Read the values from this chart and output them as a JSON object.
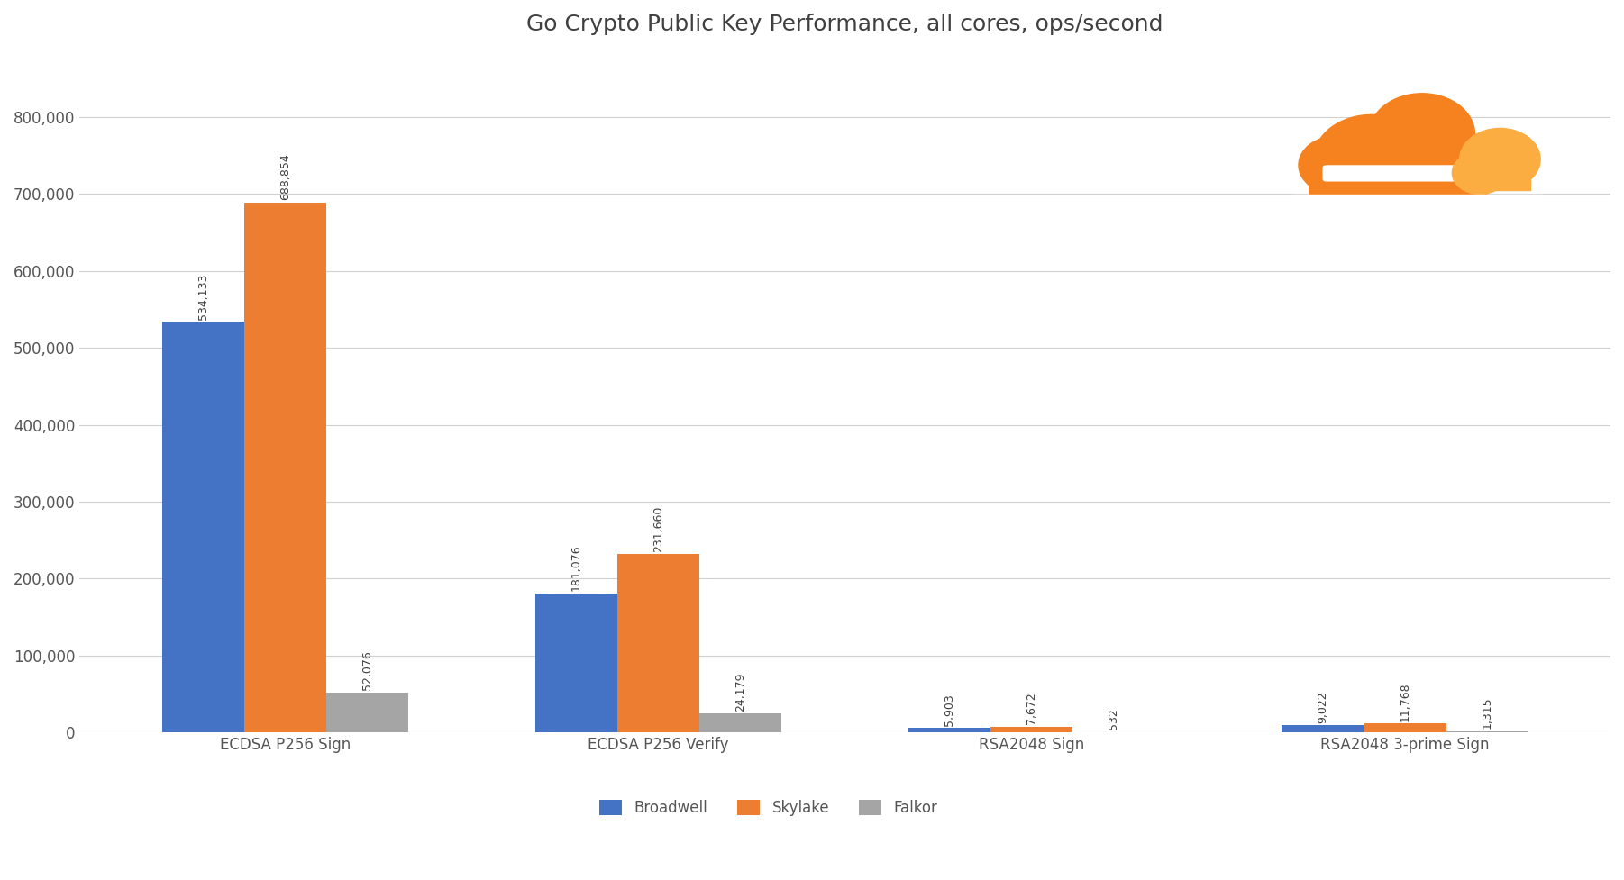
{
  "title": "Go Crypto Public Key Performance, all cores, ops/second",
  "categories": [
    "ECDSA P256 Sign",
    "ECDSA P256 Verify",
    "RSA2048 Sign",
    "RSA2048 3-prime Sign"
  ],
  "series": [
    {
      "name": "Broadwell",
      "color": "#4472C4",
      "values": [
        534133,
        181076,
        5903,
        9022
      ]
    },
    {
      "name": "Skylake",
      "color": "#ED7D31",
      "values": [
        688854,
        231660,
        7672,
        11768
      ]
    },
    {
      "name": "Falkor",
      "color": "#A5A5A5",
      "values": [
        52076,
        24179,
        532,
        1315
      ]
    }
  ],
  "ylim": [
    0,
    880000
  ],
  "yticks": [
    0,
    100000,
    200000,
    300000,
    400000,
    500000,
    600000,
    700000,
    800000
  ],
  "ytick_labels": [
    "0",
    "100,000",
    "200,000",
    "300,000",
    "400,000",
    "500,000",
    "600,000",
    "700,000",
    "800,000"
  ],
  "bar_width": 0.22,
  "background_color": "#FFFFFF",
  "grid_color": "#D0D0D0",
  "title_fontsize": 18,
  "tick_fontsize": 12,
  "legend_fontsize": 12,
  "annotation_fontsize": 9,
  "cloud_orange": "#F6821F",
  "cloud_orange_light": "#FBAD41",
  "cloud_white": "#FFFFFF"
}
